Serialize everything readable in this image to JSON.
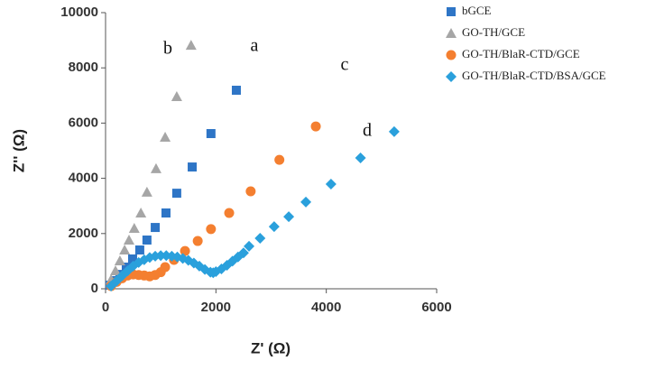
{
  "chart_data": {
    "type": "scatter",
    "xlabel": "Z' (Ω)",
    "ylabel": "Z'' (Ω)",
    "xlim": [
      0,
      6000
    ],
    "xticks": [
      0,
      2000,
      4000,
      6000
    ],
    "ylim": [
      0,
      10000
    ],
    "yticks": [
      0,
      2000,
      4000,
      6000,
      8000,
      10000
    ],
    "grid": false,
    "legend": "upper right",
    "annotations": [
      "b",
      "a",
      "c",
      "d"
    ],
    "series": [
      {
        "name": "bGCE",
        "color": "#2e75c6",
        "marker": "square",
        "x": [
          2370,
          1910,
          1570,
          1290,
          1095,
          900,
          750,
          620,
          490,
          375,
          260,
          165,
          80
        ],
        "y": [
          7190,
          5620,
          4410,
          3460,
          2745,
          2220,
          1765,
          1405,
          1080,
          785,
          520,
          295,
          130
        ]
      },
      {
        "name": "GO-TH/GCE",
        "color": "#a6a6a6",
        "marker": "triangle",
        "x": [
          1550,
          1290,
          1080,
          915,
          750,
          640,
          520,
          425,
          345,
          260,
          180,
          100
        ],
        "y": [
          8820,
          6960,
          5490,
          4350,
          3500,
          2745,
          2190,
          1765,
          1405,
          1015,
          655,
          330
        ]
      },
      {
        "name": "GO-TH/BlaR-CTD/GCE",
        "color": "#f47f30",
        "marker": "circle",
        "x": [
          3810,
          3150,
          2630,
          2240,
          1910,
          1670,
          1440,
          1240,
          1080,
          1000,
          900,
          800,
          700,
          600,
          500,
          400,
          300,
          200,
          100
        ],
        "y": [
          5880,
          4670,
          3530,
          2745,
          2160,
          1730,
          1370,
          1045,
          785,
          600,
          500,
          450,
          480,
          500,
          520,
          480,
          380,
          250,
          100
        ]
      },
      {
        "name": "GO-TH/BlaR-CTD/BSA/GCE",
        "color": "#2aa0dc",
        "marker": "diamond",
        "x": [
          5230,
          4620,
          4085,
          3630,
          3320,
          3055,
          2800,
          2600,
          2500,
          2400,
          2300,
          2200,
          2100,
          2000,
          1950,
          1900,
          1800,
          1700,
          1600,
          1500,
          1400,
          1300,
          1200,
          1100,
          1000,
          900,
          800,
          700,
          600,
          500,
          400,
          300,
          200,
          100
        ],
        "y": [
          5690,
          4740,
          3790,
          3140,
          2610,
          2250,
          1830,
          1540,
          1300,
          1150,
          1000,
          850,
          720,
          620,
          580,
          600,
          700,
          820,
          930,
          1030,
          1100,
          1150,
          1180,
          1200,
          1200,
          1180,
          1130,
          1050,
          950,
          820,
          650,
          470,
          280,
          100
        ]
      }
    ]
  }
}
